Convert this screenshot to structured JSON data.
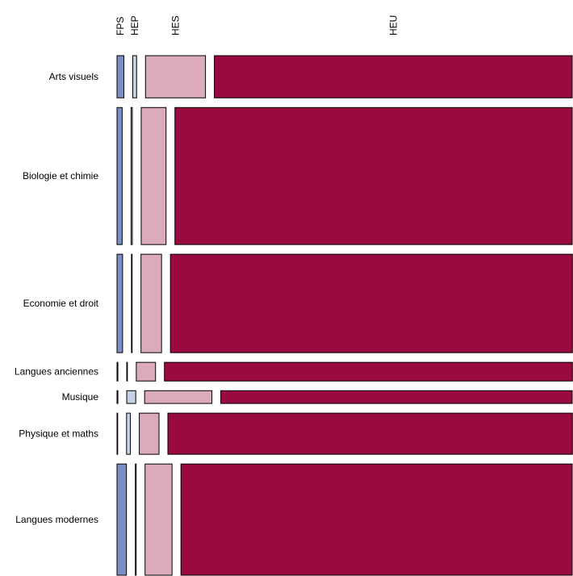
{
  "chart_data": {
    "type": "mosaic",
    "columns": [
      {
        "label": "FPS",
        "color": "#7b8fc6"
      },
      {
        "label": "HEP",
        "color": "#c6d0e6"
      },
      {
        "label": "HES",
        "color": "#dbaabd"
      },
      {
        "label": "HEU",
        "color": "#980a40"
      }
    ],
    "rows": [
      {
        "label": "Arts visuels",
        "total": 16.5,
        "shares": [
          0.016,
          0.009,
          0.14,
          0.835
        ]
      },
      {
        "label": "Biologie et chimie",
        "total": 53.6,
        "shares": [
          0.012,
          0.003,
          0.058,
          0.927
        ]
      },
      {
        "label": "Economie et droit",
        "total": 38.5,
        "shares": [
          0.013,
          0.001,
          0.048,
          0.938
        ]
      },
      {
        "label": "Langues anciennes",
        "total": 7.3,
        "shares": [
          0.002,
          0.001,
          0.045,
          0.952
        ]
      },
      {
        "label": "Musique",
        "total": 5.0,
        "shares": [
          0.002,
          0.021,
          0.157,
          0.82
        ]
      },
      {
        "label": "Physique et maths",
        "total": 16.1,
        "shares": [
          0.001,
          0.009,
          0.046,
          0.944
        ]
      },
      {
        "label": "Langues modernes",
        "total": 43.5,
        "shares": [
          0.022,
          0.002,
          0.063,
          0.913
        ]
      }
    ]
  }
}
